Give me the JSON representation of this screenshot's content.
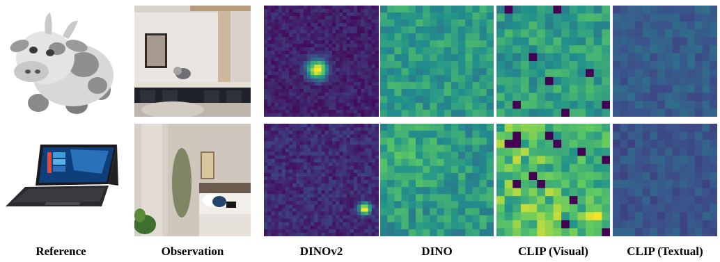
{
  "figure": {
    "columns": [
      {
        "key": "reference",
        "label": "Reference"
      },
      {
        "key": "observation",
        "label": "Observation"
      },
      {
        "key": "dinov2",
        "label": "DINOv2"
      },
      {
        "key": "dino",
        "label": "DINO"
      },
      {
        "key": "clip_visual",
        "label": "CLIP (Visual)"
      },
      {
        "key": "clip_textual",
        "label": "CLIP (Textual)"
      }
    ],
    "rows": [
      {
        "reference_object": "plush-goat-toy",
        "observation_scene": "living-room-counter"
      },
      {
        "reference_object": "laptop-tablet",
        "observation_scene": "bedroom-doorway"
      }
    ],
    "colormap": [
      "#440154",
      "#3b528b",
      "#21918c",
      "#5ec962",
      "#fde725"
    ]
  }
}
